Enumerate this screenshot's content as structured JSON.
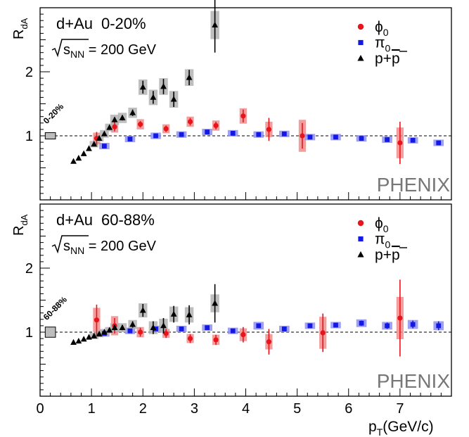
{
  "chart_data": [
    {
      "type": "scatter",
      "panel": "top",
      "ylabel_main": "R",
      "ylabel_sub": "dA",
      "title_system": "d+Au",
      "title_centrality": "0-20%",
      "energy_sqrt": "s",
      "energy_sub": "NN",
      "energy_value": " = 200 GeV",
      "global_box_label": "0-20%",
      "brand": "PHENIX",
      "xlim": [
        0,
        8
      ],
      "ylim": [
        0,
        3
      ],
      "yticks": [
        1,
        2
      ],
      "reference_line": 1,
      "global_uncertainty": 0.05,
      "legend_position": "top-right",
      "series": [
        {
          "key": "phi",
          "legend_main": "ϕ",
          "legend_sub": "0",
          "color": "#e8141b",
          "marker": "circle",
          "points": [
            {
              "x": 1.1,
              "y": 0.96,
              "stat": 0.1,
              "sys": 0.09
            },
            {
              "x": 1.45,
              "y": 1.14,
              "stat": 0.07,
              "sys": 0.09
            },
            {
              "x": 1.95,
              "y": 1.18,
              "stat": 0.05,
              "sys": 0.08
            },
            {
              "x": 2.45,
              "y": 1.11,
              "stat": 0.05,
              "sys": 0.07
            },
            {
              "x": 2.92,
              "y": 1.22,
              "stat": 0.06,
              "sys": 0.08
            },
            {
              "x": 3.42,
              "y": 1.16,
              "stat": 0.06,
              "sys": 0.08
            },
            {
              "x": 3.95,
              "y": 1.31,
              "stat": 0.1,
              "sys": 0.12
            },
            {
              "x": 4.45,
              "y": 1.1,
              "stat": 0.18,
              "sys": 0.12
            },
            {
              "x": 5.1,
              "y": 1.0,
              "stat": 0.2,
              "sys": 0.25
            },
            {
              "x": 7.0,
              "y": 0.89,
              "stat": 0.33,
              "sys": 0.24
            }
          ]
        },
        {
          "key": "pi",
          "legend_main": "π",
          "legend_sub": "0",
          "color": "#1219e6",
          "marker": "square",
          "points": [
            {
              "x": 1.25,
              "y": 0.84,
              "stat": 0.02,
              "sys": 0.05
            },
            {
              "x": 1.75,
              "y": 0.95,
              "stat": 0.02,
              "sys": 0.05
            },
            {
              "x": 2.25,
              "y": 1.0,
              "stat": 0.02,
              "sys": 0.05
            },
            {
              "x": 2.75,
              "y": 1.02,
              "stat": 0.02,
              "sys": 0.05
            },
            {
              "x": 3.25,
              "y": 1.06,
              "stat": 0.02,
              "sys": 0.05
            },
            {
              "x": 3.75,
              "y": 1.04,
              "stat": 0.02,
              "sys": 0.05
            },
            {
              "x": 4.25,
              "y": 1.02,
              "stat": 0.02,
              "sys": 0.05
            },
            {
              "x": 4.75,
              "y": 1.03,
              "stat": 0.02,
              "sys": 0.05
            },
            {
              "x": 5.25,
              "y": 0.98,
              "stat": 0.02,
              "sys": 0.05
            },
            {
              "x": 5.75,
              "y": 0.98,
              "stat": 0.02,
              "sys": 0.05
            },
            {
              "x": 6.25,
              "y": 0.96,
              "stat": 0.02,
              "sys": 0.05
            },
            {
              "x": 6.75,
              "y": 0.94,
              "stat": 0.02,
              "sys": 0.05
            },
            {
              "x": 7.25,
              "y": 0.93,
              "stat": 0.03,
              "sys": 0.05
            },
            {
              "x": 7.75,
              "y": 0.89,
              "stat": 0.03,
              "sys": 0.05
            }
          ]
        },
        {
          "key": "p",
          "legend_main": "p+",
          "legend_overline": "p",
          "color": "#000000",
          "marker": "triangle",
          "points": [
            {
              "x": 0.65,
              "y": 0.6
            },
            {
              "x": 0.75,
              "y": 0.65
            },
            {
              "x": 0.85,
              "y": 0.72
            },
            {
              "x": 0.95,
              "y": 0.8
            },
            {
              "x": 1.05,
              "y": 0.87,
              "stat": 0.03,
              "sys": 0.05
            },
            {
              "x": 1.15,
              "y": 0.96,
              "stat": 0.03,
              "sys": 0.05
            },
            {
              "x": 1.25,
              "y": 1.03,
              "stat": 0.03,
              "sys": 0.06
            },
            {
              "x": 1.35,
              "y": 1.13,
              "stat": 0.03,
              "sys": 0.06
            },
            {
              "x": 1.45,
              "y": 1.25,
              "stat": 0.04,
              "sys": 0.08
            },
            {
              "x": 1.6,
              "y": 1.28,
              "stat": 0.04,
              "sys": 0.08
            },
            {
              "x": 1.8,
              "y": 1.36,
              "stat": 0.05,
              "sys": 0.08
            },
            {
              "x": 2.0,
              "y": 1.76,
              "stat": 0.1,
              "sys": 0.12
            },
            {
              "x": 2.2,
              "y": 1.6,
              "stat": 0.1,
              "sys": 0.12
            },
            {
              "x": 2.4,
              "y": 1.77,
              "stat": 0.12,
              "sys": 0.13
            },
            {
              "x": 2.6,
              "y": 1.57,
              "stat": 0.12,
              "sys": 0.13
            },
            {
              "x": 2.9,
              "y": 1.91,
              "stat": 0.12,
              "sys": 0.13
            },
            {
              "x": 3.4,
              "y": 2.73,
              "stat": 0.43,
              "sys": 0.22
            }
          ]
        }
      ]
    },
    {
      "type": "scatter",
      "panel": "bottom",
      "ylabel_main": "R",
      "ylabel_sub": "dA",
      "title_system": "d+Au",
      "title_centrality": "60-88%",
      "energy_sqrt": "s",
      "energy_sub": "NN",
      "energy_value": " = 200 GeV",
      "global_box_label": "60-88%",
      "brand": "PHENIX",
      "xlabel_main": "p",
      "xlabel_sub": "T",
      "xlabel_unit": "(GeV/c)",
      "xticks": [
        0,
        1,
        2,
        3,
        4,
        5,
        6,
        7
      ],
      "xlim": [
        0,
        8
      ],
      "ylim": [
        0,
        3
      ],
      "yticks": [
        1,
        2
      ],
      "reference_line": 1,
      "global_uncertainty": 0.08,
      "legend_position": "top-right",
      "series": [
        {
          "key": "phi",
          "legend_main": "ϕ",
          "legend_sub": "0",
          "color": "#e8141b",
          "marker": "circle",
          "points": [
            {
              "x": 1.1,
              "y": 1.19,
              "stat": 0.24,
              "sys": 0.19
            },
            {
              "x": 1.45,
              "y": 1.1,
              "stat": 0.12,
              "sys": 0.15
            },
            {
              "x": 1.95,
              "y": 1.0,
              "stat": 0.07,
              "sys": 0.08
            },
            {
              "x": 2.45,
              "y": 0.98,
              "stat": 0.07,
              "sys": 0.07
            },
            {
              "x": 2.92,
              "y": 0.9,
              "stat": 0.07,
              "sys": 0.07
            },
            {
              "x": 3.42,
              "y": 0.88,
              "stat": 0.08,
              "sys": 0.08
            },
            {
              "x": 3.95,
              "y": 0.96,
              "stat": 0.12,
              "sys": 0.1
            },
            {
              "x": 4.45,
              "y": 0.85,
              "stat": 0.2,
              "sys": 0.12
            },
            {
              "x": 5.5,
              "y": 0.99,
              "stat": 0.3,
              "sys": 0.25
            },
            {
              "x": 7.0,
              "y": 1.22,
              "stat": 0.6,
              "sys": 0.33
            }
          ]
        },
        {
          "key": "pi",
          "legend_main": "π",
          "legend_sub": "0",
          "color": "#1219e6",
          "marker": "square",
          "points": [
            {
              "x": 1.25,
              "y": 0.98,
              "stat": 0.02,
              "sys": 0.05
            },
            {
              "x": 1.75,
              "y": 1.02,
              "stat": 0.02,
              "sys": 0.05
            },
            {
              "x": 2.25,
              "y": 1.05,
              "stat": 0.02,
              "sys": 0.05
            },
            {
              "x": 2.75,
              "y": 1.05,
              "stat": 0.02,
              "sys": 0.05
            },
            {
              "x": 3.25,
              "y": 1.07,
              "stat": 0.02,
              "sys": 0.05
            },
            {
              "x": 3.75,
              "y": 1.02,
              "stat": 0.02,
              "sys": 0.05
            },
            {
              "x": 4.25,
              "y": 1.1,
              "stat": 0.03,
              "sys": 0.06
            },
            {
              "x": 4.75,
              "y": 1.05,
              "stat": 0.03,
              "sys": 0.05
            },
            {
              "x": 5.25,
              "y": 1.1,
              "stat": 0.03,
              "sys": 0.05
            },
            {
              "x": 5.75,
              "y": 1.11,
              "stat": 0.03,
              "sys": 0.05
            },
            {
              "x": 6.25,
              "y": 1.14,
              "stat": 0.04,
              "sys": 0.06
            },
            {
              "x": 6.75,
              "y": 1.1,
              "stat": 0.05,
              "sys": 0.06
            },
            {
              "x": 7.25,
              "y": 1.12,
              "stat": 0.06,
              "sys": 0.07
            },
            {
              "x": 7.75,
              "y": 1.1,
              "stat": 0.07,
              "sys": 0.07
            }
          ]
        },
        {
          "key": "p",
          "legend_main": "p+",
          "legend_overline": "p",
          "color": "#000000",
          "marker": "triangle",
          "points": [
            {
              "x": 0.65,
              "y": 0.84
            },
            {
              "x": 0.75,
              "y": 0.86
            },
            {
              "x": 0.85,
              "y": 0.89
            },
            {
              "x": 0.95,
              "y": 0.92
            },
            {
              "x": 1.05,
              "y": 0.94,
              "stat": 0.03,
              "sys": 0.05
            },
            {
              "x": 1.15,
              "y": 0.97,
              "stat": 0.03,
              "sys": 0.05
            },
            {
              "x": 1.25,
              "y": 1.0,
              "stat": 0.03,
              "sys": 0.05
            },
            {
              "x": 1.35,
              "y": 1.03,
              "stat": 0.03,
              "sys": 0.05
            },
            {
              "x": 1.45,
              "y": 1.07,
              "stat": 0.04,
              "sys": 0.07
            },
            {
              "x": 1.6,
              "y": 1.07,
              "stat": 0.04,
              "sys": 0.07
            },
            {
              "x": 1.8,
              "y": 1.12,
              "stat": 0.05,
              "sys": 0.07
            },
            {
              "x": 2.0,
              "y": 1.34,
              "stat": 0.1,
              "sys": 0.11
            },
            {
              "x": 2.2,
              "y": 1.07,
              "stat": 0.1,
              "sys": 0.1
            },
            {
              "x": 2.4,
              "y": 1.1,
              "stat": 0.12,
              "sys": 0.11
            },
            {
              "x": 2.6,
              "y": 1.28,
              "stat": 0.13,
              "sys": 0.12
            },
            {
              "x": 2.9,
              "y": 1.27,
              "stat": 0.15,
              "sys": 0.12
            },
            {
              "x": 3.4,
              "y": 1.45,
              "stat": 0.3,
              "sys": 0.14
            }
          ]
        }
      ]
    }
  ]
}
